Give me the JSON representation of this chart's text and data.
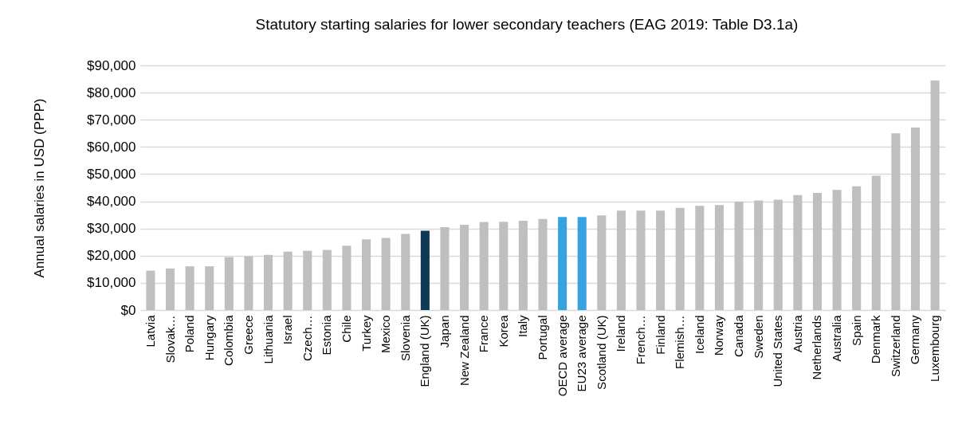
{
  "chart_data": {
    "type": "bar",
    "title": "Statutory starting salaries for lower secondary teachers (EAG 2019: Table D3.1a)",
    "ylabel": "Annual salaries in USD (PPP)",
    "categories": [
      "Latvia",
      "Slovak…",
      "Poland",
      "Hungary",
      "Colombia",
      "Greece",
      "Lithuania",
      "Israel",
      "Czech…",
      "Estonia",
      "Chile",
      "Turkey",
      "Mexico",
      "Slovenia",
      "England (UK)",
      "Japan",
      "New Zealand",
      "France",
      "Korea",
      "Italy",
      "Portugal",
      "OECD average",
      "EU23 average",
      "Scotland (UK)",
      "Ireland",
      "French…",
      "Finland",
      "Flemish…",
      "Iceland",
      "Norway",
      "Canada",
      "Sweden",
      "United States",
      "Austria",
      "Netherlands",
      "Australia",
      "Spain",
      "Denmark",
      "Switzerland",
      "Germany",
      "Luxembourg"
    ],
    "values": [
      14500,
      15300,
      16100,
      16100,
      19500,
      19800,
      20300,
      21500,
      21800,
      22100,
      23700,
      26000,
      26500,
      28000,
      29200,
      30500,
      31400,
      32400,
      32500,
      32800,
      33500,
      34200,
      34200,
      34800,
      36600,
      36600,
      36600,
      37600,
      38300,
      38600,
      39900,
      40300,
      40600,
      42300,
      43100,
      44200,
      45500,
      49400,
      65000,
      67100,
      84400
    ],
    "colors": [
      "#bfbfbf",
      "#bfbfbf",
      "#bfbfbf",
      "#bfbfbf",
      "#bfbfbf",
      "#bfbfbf",
      "#bfbfbf",
      "#bfbfbf",
      "#bfbfbf",
      "#bfbfbf",
      "#bfbfbf",
      "#bfbfbf",
      "#bfbfbf",
      "#bfbfbf",
      "#0e3a56",
      "#bfbfbf",
      "#bfbfbf",
      "#bfbfbf",
      "#bfbfbf",
      "#bfbfbf",
      "#bfbfbf",
      "#36a2e2",
      "#36a2e2",
      "#bfbfbf",
      "#bfbfbf",
      "#bfbfbf",
      "#bfbfbf",
      "#bfbfbf",
      "#bfbfbf",
      "#bfbfbf",
      "#bfbfbf",
      "#bfbfbf",
      "#bfbfbf",
      "#bfbfbf",
      "#bfbfbf",
      "#bfbfbf",
      "#bfbfbf",
      "#bfbfbf",
      "#bfbfbf",
      "#bfbfbf",
      "#bfbfbf"
    ],
    "ylim": [
      0,
      90000
    ],
    "yticks": [
      {
        "value": 0,
        "label": "$0"
      },
      {
        "value": 10000,
        "label": "$10,000"
      },
      {
        "value": 20000,
        "label": "$20,000"
      },
      {
        "value": 30000,
        "label": "$30,000"
      },
      {
        "value": 40000,
        "label": "$40,000"
      },
      {
        "value": 50000,
        "label": "$50,000"
      },
      {
        "value": 60000,
        "label": "$60,000"
      },
      {
        "value": 70000,
        "label": "$70,000"
      },
      {
        "value": 80000,
        "label": "$80,000"
      },
      {
        "value": 90000,
        "label": "$90,000"
      }
    ],
    "grid": "y"
  }
}
